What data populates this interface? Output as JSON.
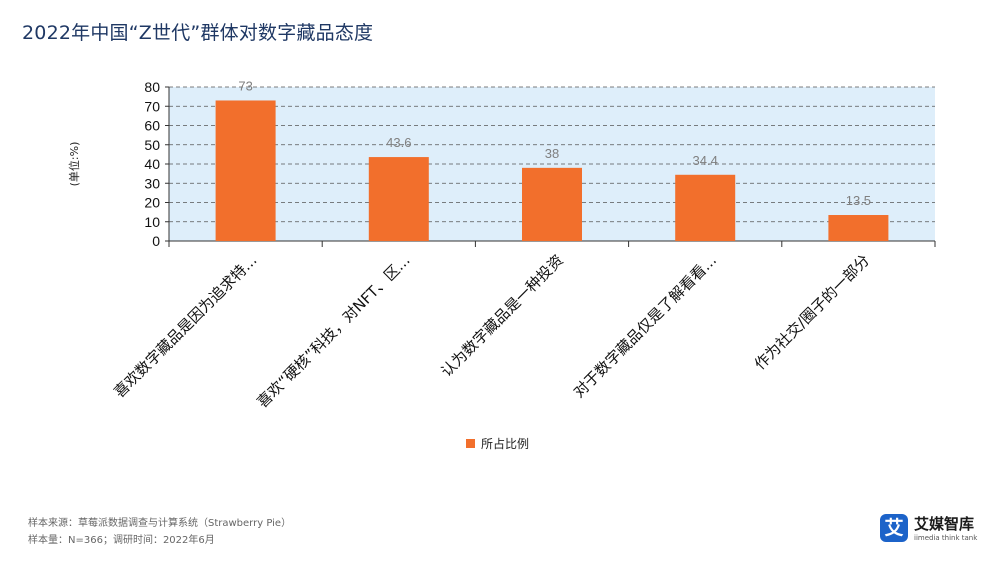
{
  "title": "2022年中国“Z世代”群体对数字藏品态度",
  "chart_data": {
    "type": "bar",
    "categories": [
      "喜欢数字藏品是因为追求特...",
      "喜欢“硬核”科技，对NFT、区...",
      "认为数字藏品是一种投资",
      "对于数字藏品仅是了解看看...",
      "作为社交/圈子的一部分"
    ],
    "series": [
      {
        "name": "所占比例",
        "values": [
          73,
          43.6,
          38,
          34.4,
          13.5
        ],
        "color": "#f26f2c"
      }
    ],
    "data_labels": [
      "73",
      "43.6",
      "38",
      "34.4",
      "13.5"
    ],
    "ylabel": "(单位:%)",
    "yticks": [
      0,
      10,
      20,
      30,
      40,
      50,
      60,
      70,
      80
    ],
    "ylim": [
      0,
      80
    ],
    "grid": true,
    "legend": "bottom-center",
    "plot_background": "#deeefa"
  },
  "footer": {
    "source": "样本来源：草莓派数据调查与计算系统（Strawberry Pie）",
    "sample": "样本量：N=366；调研时间：2022年6月"
  },
  "logo": {
    "mark": "艾",
    "name": "艾媒智库",
    "sub": "iimedia think tank"
  }
}
